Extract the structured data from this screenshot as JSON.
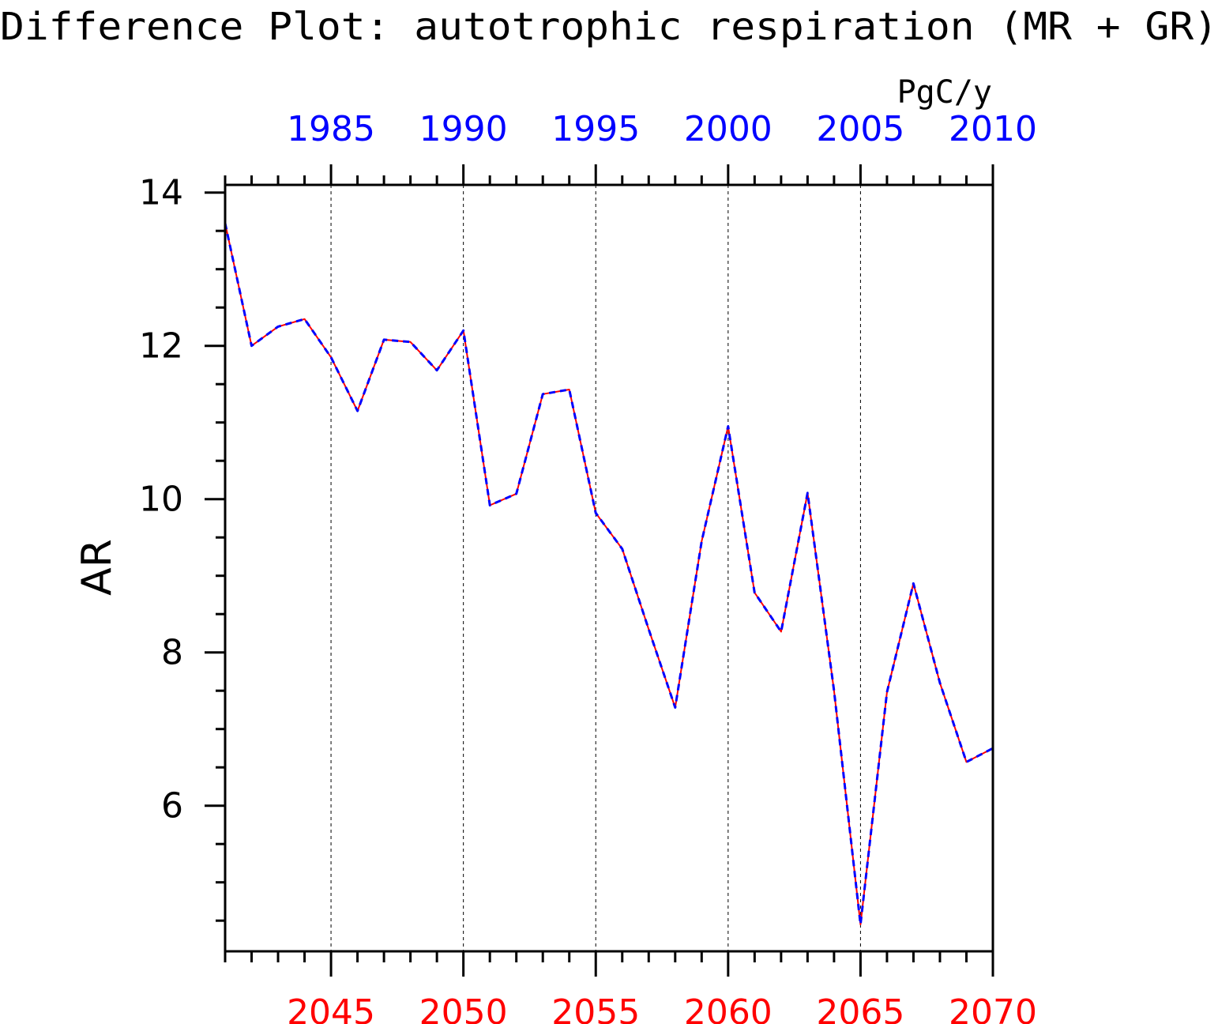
{
  "chart_data": {
    "type": "line",
    "title": "Difference Plot: autotrophic respiration (MR + GR)",
    "units": "PgC/y",
    "ylabel": "AR",
    "ylim": [
      4.1,
      14.1
    ],
    "y_ticks": [
      6,
      8,
      10,
      12,
      14
    ],
    "y_minor_step": 0.5,
    "x_bottom": {
      "range": [
        2041,
        2070
      ],
      "ticks": [
        2045,
        2050,
        2055,
        2060,
        2065,
        2070
      ],
      "color": "#ff0000"
    },
    "x_top": {
      "range": [
        1981,
        2010
      ],
      "ticks": [
        1985,
        1990,
        1995,
        2000,
        2005,
        2010
      ],
      "color": "#0000ff"
    },
    "grid": "dashed vertical lines at major bottom ticks",
    "series": [
      {
        "color": "#ff0000",
        "style": "solid",
        "x": [
          2041,
          2042,
          2043,
          2044,
          2045,
          2046,
          2047,
          2048,
          2049,
          2050,
          2051,
          2052,
          2053,
          2054,
          2055,
          2056,
          2057,
          2058,
          2059,
          2060,
          2061,
          2062,
          2063,
          2064,
          2065,
          2066,
          2067,
          2068,
          2069,
          2070
        ],
        "values": [
          13.6,
          12.0,
          12.25,
          12.35,
          11.85,
          11.15,
          12.08,
          12.05,
          11.68,
          12.2,
          9.92,
          10.07,
          11.37,
          11.43,
          9.82,
          9.35,
          8.3,
          7.28,
          9.45,
          10.95,
          8.78,
          8.27,
          10.08,
          7.5,
          4.45,
          7.48,
          8.9,
          7.6,
          6.57,
          6.75
        ]
      },
      {
        "color": "#0000ff",
        "style": "dashed",
        "x": [
          1981,
          1982,
          1983,
          1984,
          1985,
          1986,
          1987,
          1988,
          1989,
          1990,
          1991,
          1992,
          1993,
          1994,
          1995,
          1996,
          1997,
          1998,
          1999,
          2000,
          2001,
          2002,
          2003,
          2004,
          2005,
          2006,
          2007,
          2008,
          2009,
          2010
        ],
        "values": [
          13.6,
          12.0,
          12.25,
          12.35,
          11.85,
          11.15,
          12.08,
          12.05,
          11.68,
          12.2,
          9.92,
          10.07,
          11.37,
          11.43,
          9.82,
          9.35,
          8.3,
          7.28,
          9.45,
          10.95,
          8.78,
          8.27,
          10.08,
          7.5,
          4.45,
          7.48,
          8.9,
          7.6,
          6.57,
          6.75
        ]
      }
    ]
  }
}
